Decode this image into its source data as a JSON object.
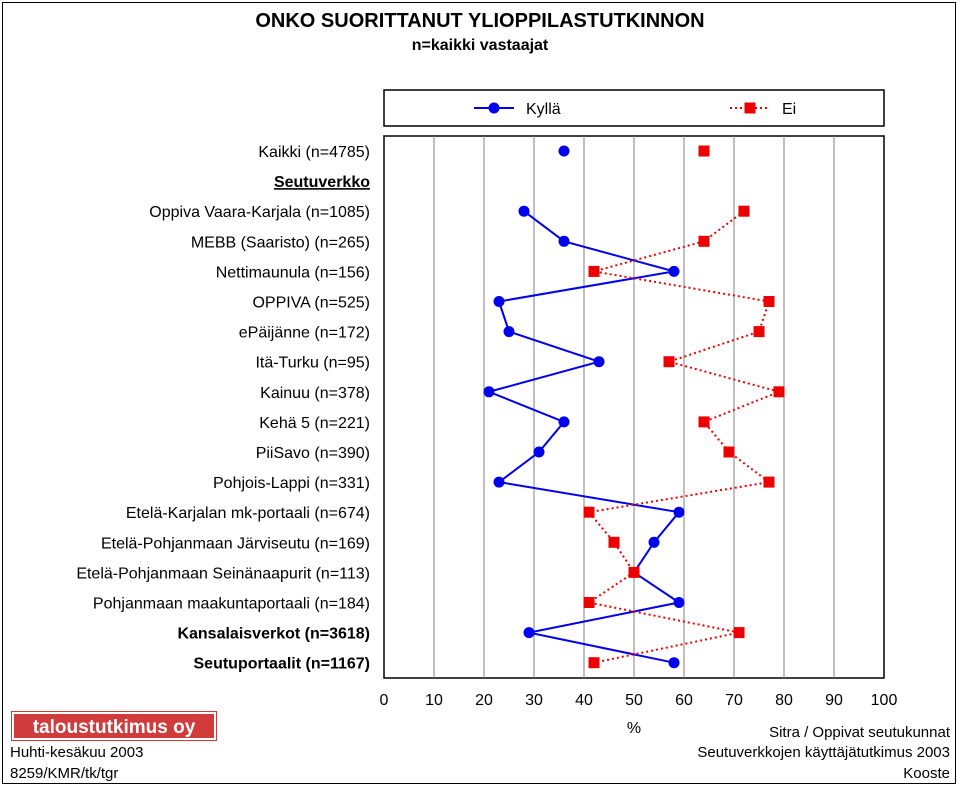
{
  "title": "ONKO SUORITTANUT YLIOPPILASTUTKINNON",
  "subtitle": "n=kaikki vastaajat",
  "logo": "taloustutkimus oy",
  "footer": {
    "left": [
      "Huhti-kesäkuu 2003",
      "8259/KMR/tk/tgr"
    ],
    "right": [
      "Sitra / Oppivat seutukunnat",
      "Seutuverkkojen käyttäjätutkimus 2003",
      "Kooste"
    ]
  },
  "chart_data": {
    "type": "line",
    "orientation": "horizontal",
    "xlabel": "%",
    "xlim": [
      0,
      100
    ],
    "xticks": [
      0,
      10,
      20,
      30,
      40,
      50,
      60,
      70,
      80,
      90,
      100
    ],
    "grid": true,
    "legend_position": "top",
    "categories": [
      {
        "label": "Kaikki (n=4785)",
        "style": "normal"
      },
      {
        "label": "Seutuverkko",
        "style": "underline"
      },
      {
        "label": "Oppiva Vaara-Karjala (n=1085)",
        "style": "normal"
      },
      {
        "label": "MEBB (Saaristo) (n=265)",
        "style": "normal"
      },
      {
        "label": "Nettimaunula (n=156)",
        "style": "normal"
      },
      {
        "label": "OPPIVA (n=525)",
        "style": "normal"
      },
      {
        "label": "ePäijänne (n=172)",
        "style": "normal"
      },
      {
        "label": "Itä-Turku (n=95)",
        "style": "normal"
      },
      {
        "label": "Kainuu (n=378)",
        "style": "normal"
      },
      {
        "label": "Kehä 5 (n=221)",
        "style": "normal"
      },
      {
        "label": "PiiSavo (n=390)",
        "style": "normal"
      },
      {
        "label": "Pohjois-Lappi (n=331)",
        "style": "normal"
      },
      {
        "label": "Etelä-Karjalan mk-portaali (n=674)",
        "style": "normal"
      },
      {
        "label": "Etelä-Pohjanmaan Järviseutu (n=169)",
        "style": "normal"
      },
      {
        "label": "Etelä-Pohjanmaan Seinänaapurit (n=113)",
        "style": "normal"
      },
      {
        "label": "Pohjanmaan maakuntaportaali (n=184)",
        "style": "normal"
      },
      {
        "label": "Kansalaisverkot (n=3618)",
        "style": "bold"
      },
      {
        "label": "Seutuportaalit (n=1167)",
        "style": "bold"
      }
    ],
    "series": [
      {
        "name": "Kyllä",
        "color": "#0000ee",
        "marker": "circle",
        "line": "solid",
        "values": [
          36,
          null,
          28,
          36,
          58,
          23,
          25,
          43,
          21,
          36,
          31,
          23,
          59,
          54,
          50,
          59,
          29,
          58
        ]
      },
      {
        "name": "Ei",
        "color": "#ee0000",
        "marker": "square",
        "line": "dotted",
        "values": [
          64,
          null,
          72,
          64,
          42,
          77,
          75,
          57,
          79,
          64,
          69,
          77,
          41,
          46,
          50,
          41,
          71,
          42
        ]
      }
    ]
  }
}
